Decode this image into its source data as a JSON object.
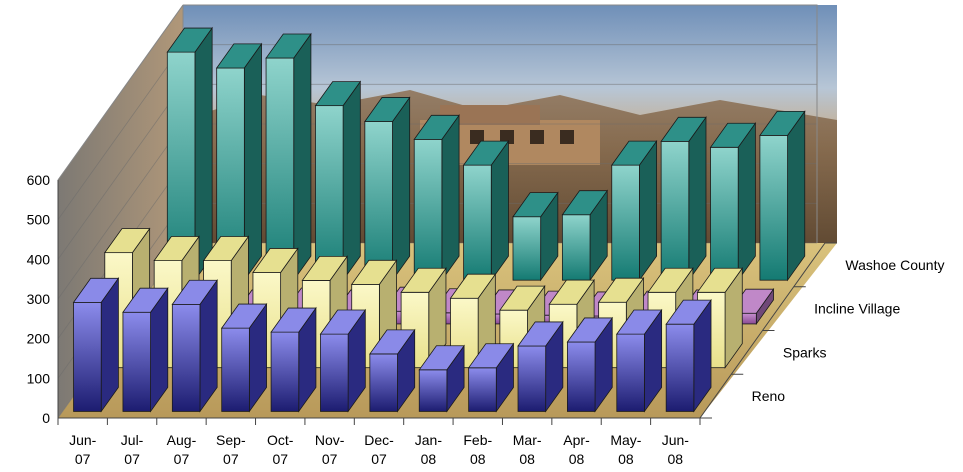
{
  "chart_data": {
    "type": "bar",
    "style": "3d-column",
    "title": "",
    "xlabel": "",
    "ylabel": "",
    "ylim": [
      0,
      600
    ],
    "yticks": [
      "0",
      "100",
      "200",
      "300",
      "400",
      "500",
      "600"
    ],
    "categories": [
      [
        "Jun-",
        "07"
      ],
      [
        "Jul-",
        "07"
      ],
      [
        "Aug-",
        "07"
      ],
      [
        "Sep-",
        "07"
      ],
      [
        "Oct-",
        "07"
      ],
      [
        "Nov-",
        "07"
      ],
      [
        "Dec-",
        "07"
      ],
      [
        "Jan-",
        "08"
      ],
      [
        "Feb-",
        "08"
      ],
      [
        "Mar-",
        "08"
      ],
      [
        "Apr-",
        "08"
      ],
      [
        "May-",
        "08"
      ],
      [
        "Jun-",
        "08"
      ]
    ],
    "series": [
      {
        "name": "Reno",
        "values": [
          275,
          250,
          270,
          210,
          200,
          195,
          145,
          105,
          110,
          165,
          175,
          195,
          220
        ]
      },
      {
        "name": "Sparks",
        "values": [
          290,
          270,
          270,
          240,
          220,
          210,
          190,
          175,
          145,
          160,
          165,
          190,
          190
        ]
      },
      {
        "name": "Incline Village",
        "values": [
          25,
          30,
          25,
          30,
          25,
          32,
          28,
          25,
          22,
          20,
          22,
          25,
          27
        ]
      },
      {
        "name": "Washoe County",
        "values": [
          575,
          535,
          560,
          440,
          400,
          355,
          290,
          160,
          165,
          290,
          350,
          335,
          365
        ]
      }
    ],
    "colors": {
      "reno_front": "#5a5ad0",
      "reno_top": "#8a8ae8",
      "reno_side": "#2a2a80",
      "sparks_front": "#f5f0a8",
      "sparks_top": "#e6e090",
      "sparks_side": "#b8b070",
      "incline_front": "#b070b8",
      "incline_top": "#c088c8",
      "incline_side": "#704878",
      "washoe_front": "#2aa8a0",
      "washoe_top": "#2e9088",
      "washoe_side": "#1a6058",
      "background_photo": "#c9a77c",
      "floor": "#d8c078"
    },
    "legend": "series-labels-on-depth-axis-right",
    "grid": true,
    "background": "desert-hillside-house-photo"
  }
}
